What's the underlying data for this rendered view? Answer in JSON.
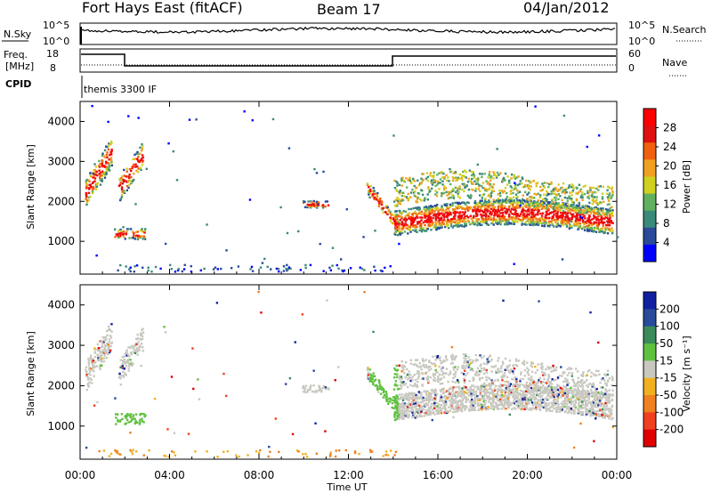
{
  "header": {
    "station": "Fort Hays East (fitACF)",
    "beam": "Beam 17",
    "date": "04/Jan/2012"
  },
  "noise_panel": {
    "left_label": "N.Sky",
    "right_label": "N.Search",
    "left_ticks": [
      "10^5",
      "10^0"
    ],
    "right_ticks": [
      "10^5",
      "10^0"
    ]
  },
  "freq_panel": {
    "left_label_line1": "Freq.",
    "left_label_line2": "[MHz]",
    "left_ticks": [
      "18",
      "8"
    ],
    "right_ticks": [
      "60",
      "0"
    ],
    "right_label": "Nave",
    "cpid_label": "CPID",
    "mode_text": "themis 3300 IF"
  },
  "chart_data": [
    {
      "type": "heatmap",
      "name": "power",
      "ylabel": "Slant Range [km]",
      "xlabel": "Time UT",
      "x_ticks": [
        "00:00",
        "04:00",
        "08:00",
        "12:00",
        "16:00",
        "20:00",
        "00:00"
      ],
      "y_ticks": [
        "1000",
        "2000",
        "3000",
        "4000"
      ],
      "colorbar_label": "Power [dB]",
      "colorbar_ticks": [
        "4",
        "8",
        "12",
        "16",
        "20",
        "24",
        "28"
      ],
      "colors": [
        "#0000ff",
        "#2a4a9a",
        "#3a8a7a",
        "#60b060",
        "#d0d020",
        "#f0a020",
        "#f06010",
        "#e01010",
        "#ff0000"
      ],
      "xlim": [
        0,
        24
      ],
      "ylim": [
        180,
        4500
      ]
    },
    {
      "type": "heatmap",
      "name": "velocity",
      "ylabel": "Slant Range [km]",
      "xlabel": "Time UT",
      "x_ticks": [
        "00:00",
        "04:00",
        "08:00",
        "12:00",
        "16:00",
        "20:00",
        "00:00"
      ],
      "y_ticks": [
        "1000",
        "2000",
        "3000",
        "4000"
      ],
      "colorbar_label": "Velocity [m s⁻¹]",
      "colorbar_ticks": [
        "200",
        "100",
        "50",
        "15",
        "-15",
        "-50",
        "-100",
        "-200"
      ],
      "colors": [
        "#1020a0",
        "#2a4a9a",
        "#3a8a5a",
        "#60c040",
        "#c8c8c0",
        "#f0b020",
        "#f08020",
        "#f04020",
        "#e00000"
      ],
      "xlim": [
        0,
        24
      ],
      "ylim": [
        180,
        4500
      ]
    }
  ],
  "x_axis_label": "Time UT"
}
